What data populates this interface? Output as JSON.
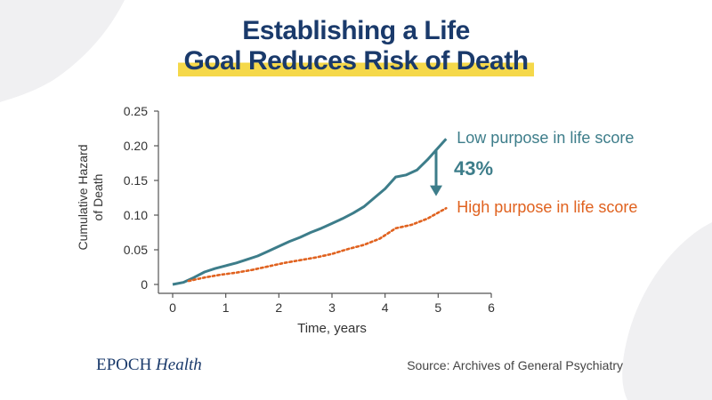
{
  "title": {
    "line1": "Establishing a Life",
    "line2": "Goal Reduces Risk of Death"
  },
  "chart_data": {
    "type": "line",
    "xlabel": "Time, years",
    "ylabel": "Cumulative Hazard of Death",
    "xlim": [
      0,
      6
    ],
    "ylim": [
      0,
      0.25
    ],
    "x_ticks": [
      "0",
      "1",
      "2",
      "3",
      "4",
      "5",
      "6"
    ],
    "y_ticks": [
      "0",
      "0.05",
      "0.10",
      "0.15",
      "0.20",
      "0.25"
    ],
    "grid": false,
    "series": [
      {
        "name": "Low purpose in life score",
        "color": "#3d7d8a",
        "style": "solid",
        "x": [
          0,
          0.2,
          0.4,
          0.6,
          0.8,
          1.0,
          1.2,
          1.4,
          1.6,
          1.8,
          2.0,
          2.2,
          2.4,
          2.6,
          2.8,
          3.0,
          3.2,
          3.4,
          3.6,
          3.8,
          4.0,
          4.2,
          4.4,
          4.6,
          4.8,
          5.0,
          5.15
        ],
        "y": [
          0,
          0.003,
          0.01,
          0.018,
          0.023,
          0.027,
          0.031,
          0.036,
          0.041,
          0.048,
          0.055,
          0.062,
          0.068,
          0.075,
          0.081,
          0.088,
          0.095,
          0.103,
          0.112,
          0.125,
          0.138,
          0.155,
          0.158,
          0.165,
          0.18,
          0.197,
          0.21
        ]
      },
      {
        "name": "High purpose in life score",
        "color": "#e0621f",
        "style": "dotted",
        "x": [
          0.3,
          0.6,
          0.9,
          1.2,
          1.5,
          1.8,
          2.1,
          2.4,
          2.7,
          3.0,
          3.3,
          3.6,
          3.9,
          4.2,
          4.5,
          4.8,
          5.15
        ],
        "y": [
          0.005,
          0.01,
          0.014,
          0.017,
          0.021,
          0.026,
          0.031,
          0.035,
          0.039,
          0.044,
          0.051,
          0.057,
          0.066,
          0.081,
          0.086,
          0.095,
          0.11
        ]
      }
    ],
    "annotation": {
      "text": "43%",
      "arrow": "down",
      "color": "#3d7d8a"
    }
  },
  "footer": {
    "logo_main": "EPOCH",
    "logo_italic": "Health",
    "source": "Source: Archives of General Psychiatry"
  },
  "colors": {
    "title": "#1a3a6b",
    "highlight": "#f5d84a",
    "axis": "#555555",
    "text": "#333333"
  }
}
